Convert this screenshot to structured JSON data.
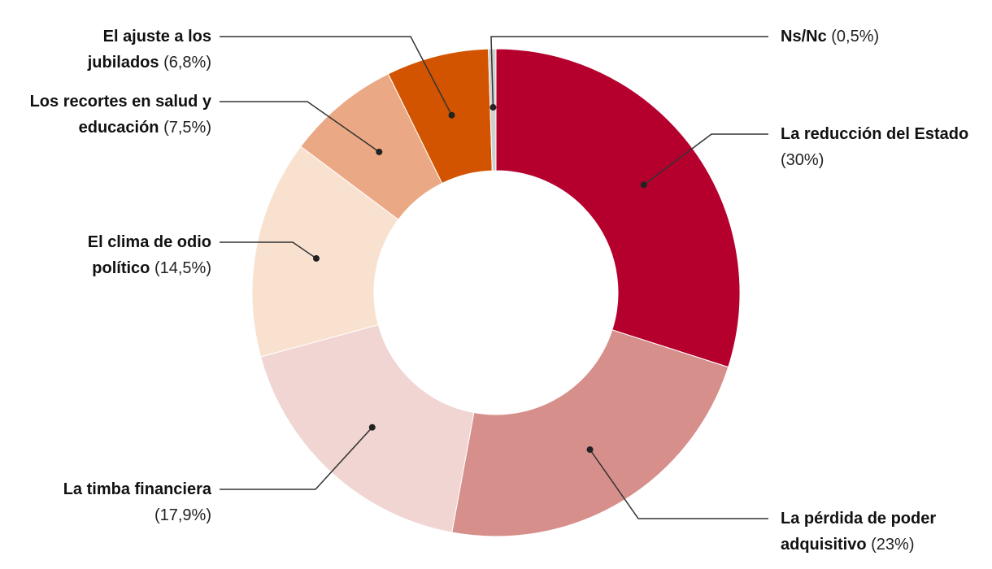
{
  "chart_data": {
    "type": "donut",
    "categories": [
      "La reducción del Estado",
      "La pérdida de poder adquisitivo",
      "La timba financiera",
      "El clima de odio político",
      "Los recortes en salud y educación",
      "El ajuste a los jubilados",
      "Ns/Nc"
    ],
    "values": [
      30,
      23,
      17.9,
      14.5,
      7.5,
      6.8,
      0.5
    ],
    "value_labels": [
      "(30%)",
      "(23%)",
      "(17,9%)",
      "(14,5%)",
      "(7,5%)",
      "(6,8%)",
      "(0,5%)"
    ],
    "colors": [
      "#b5002e",
      "#d68f8a",
      "#f0d5d2",
      "#f9e1d0",
      "#eaa984",
      "#d35400",
      "#cfcfcf"
    ]
  }
}
